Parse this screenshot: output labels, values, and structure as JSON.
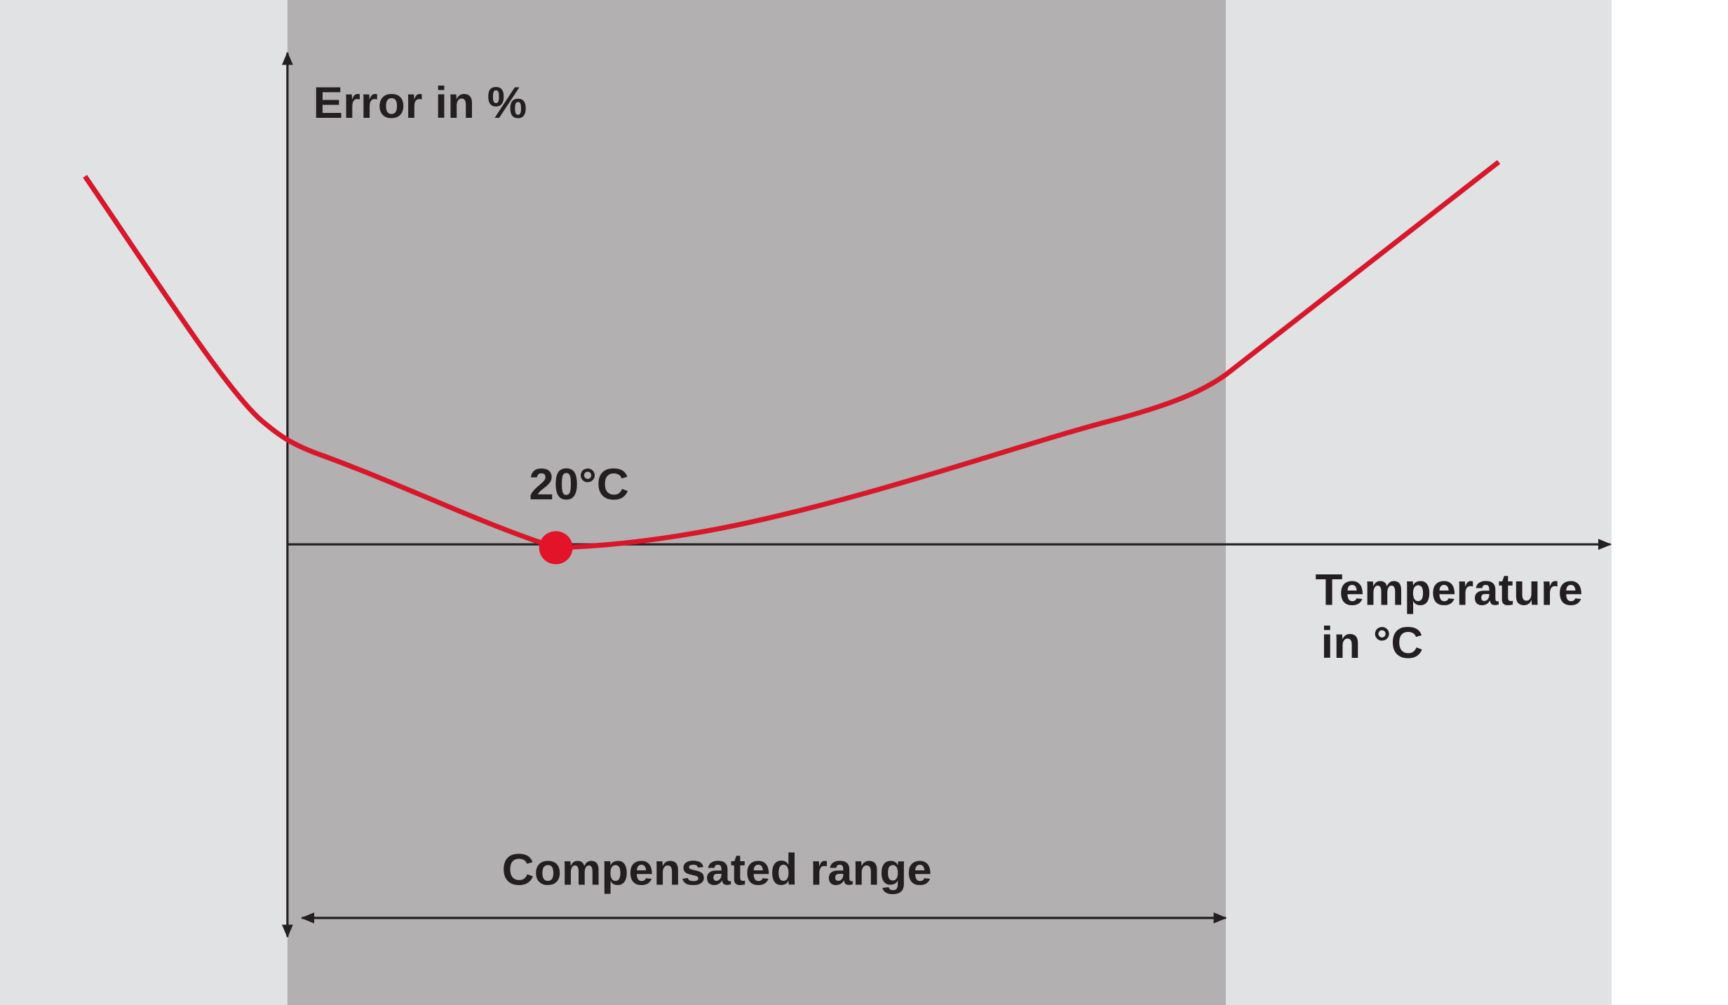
{
  "y_axis_label": "Error in %",
  "x_axis_label": [
    "Temperature",
    "in °C"
  ],
  "reference_point_label": "20°C",
  "range_label": "Compensated range"
}
